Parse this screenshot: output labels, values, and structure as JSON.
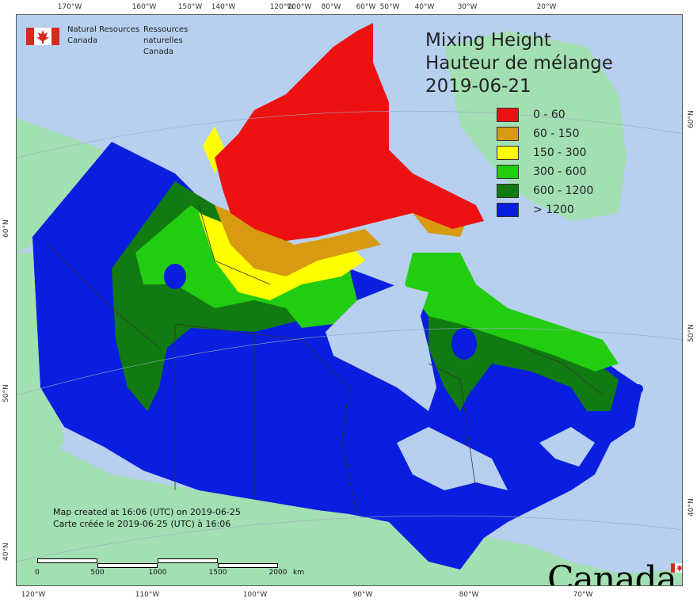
{
  "map": {
    "title_en": "Mixing Height",
    "title_fr": "Hauteur de mélange",
    "date": "2019-06-21",
    "colors": {
      "ocean": "#b7d0ef",
      "land_outside": "#a2dfb2",
      "border": "#444444"
    }
  },
  "agency": {
    "en_line1": "Natural Resources",
    "en_line2": "Canada",
    "fr_line1": "Ressources naturelles",
    "fr_line2": "Canada"
  },
  "legend": [
    {
      "label": "0 - 60",
      "color": "#ee1111"
    },
    {
      "label": "60 - 150",
      "color": "#d89a11"
    },
    {
      "label": "150 - 300",
      "color": "#ffff00"
    },
    {
      "label": "300 - 600",
      "color": "#22cc11"
    },
    {
      "label": "600 - 1200",
      "color": "#117a11"
    },
    {
      "label": "> 1200",
      "color": "#0a1ee0"
    }
  ],
  "credit": {
    "en": "Map created at 16:06 (UTC) on 2019-06-25",
    "fr": "Carte créée le 2019-06-25 (UTC) à 16:06"
  },
  "scale": {
    "labels": [
      "0",
      "500",
      "1000",
      "1500",
      "2000"
    ],
    "unit": "km"
  },
  "ticks": {
    "top": [
      "170°W",
      "160°W",
      "150°W",
      "140°W",
      "120°W",
      "100°W",
      "80°W",
      "60°W",
      "50°W",
      "40°W",
      "30°W",
      "20°W"
    ],
    "bottom": [
      "120°W",
      "110°W",
      "100°W",
      "90°W",
      "80°W",
      "70°W"
    ],
    "left": [
      "60°N",
      "50°N",
      "40°N"
    ],
    "right": [
      "60°N",
      "50°N",
      "40°N"
    ]
  },
  "wordmark": "Canada"
}
